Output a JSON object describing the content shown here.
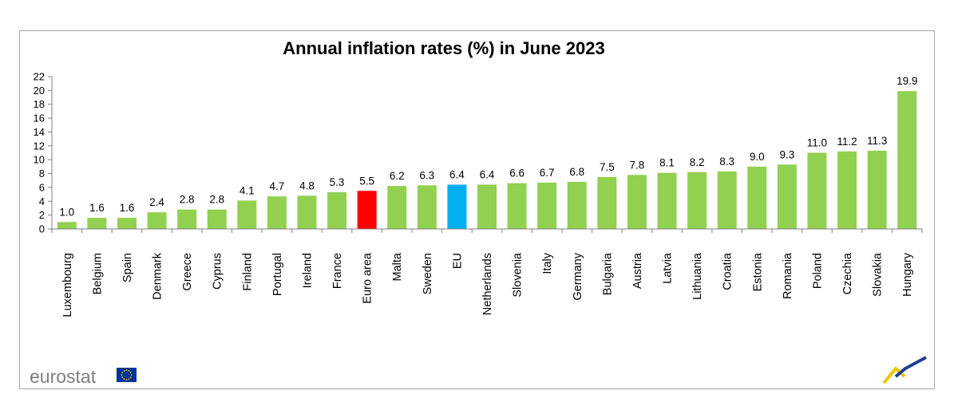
{
  "chart_data": {
    "type": "bar",
    "title": "Annual inflation rates (%) in June 2023",
    "xlabel": "",
    "ylabel": "",
    "ylim": [
      0,
      22
    ],
    "yticks": [
      0,
      2,
      4,
      6,
      8,
      10,
      12,
      14,
      16,
      18,
      20,
      22
    ],
    "grid": false,
    "legend": "none",
    "categories": [
      "Luxembourg",
      "Belgium",
      "Spain",
      "Denmark",
      "Greece",
      "Cyprus",
      "Finland",
      "Portugal",
      "Ireland",
      "France",
      "Euro area",
      "Malta",
      "Sweden",
      "EU",
      "Netherlands",
      "Slovenia",
      "Italy",
      "Germany",
      "Bulgaria",
      "Austria",
      "Latvia",
      "Lithuania",
      "Croatia",
      "Estonia",
      "Romania",
      "Poland",
      "Czechia",
      "Slovakia",
      "Hungary"
    ],
    "values": [
      1.0,
      1.6,
      1.6,
      2.4,
      2.8,
      2.8,
      4.1,
      4.7,
      4.8,
      5.3,
      5.5,
      6.2,
      6.3,
      6.4,
      6.4,
      6.6,
      6.7,
      6.8,
      7.5,
      7.8,
      8.1,
      8.2,
      8.3,
      9.0,
      9.3,
      11.0,
      11.2,
      11.3,
      19.9
    ],
    "value_labels": [
      "1.0",
      "1.6",
      "1.6",
      "2.4",
      "2.8",
      "2.8",
      "4.1",
      "4.7",
      "4.8",
      "5.3",
      "5.5",
      "6.2",
      "6.3",
      "6.4",
      "6.4",
      "6.6",
      "6.7",
      "6.8",
      "7.5",
      "7.8",
      "8.1",
      "8.2",
      "8.3",
      "9.0",
      "9.3",
      "11.0",
      "11.2",
      "11.3",
      "19.9"
    ],
    "colors": {
      "default": "#92d050",
      "highlight": {
        "Euro area": "#ff0000",
        "EU": "#00b0f0"
      }
    }
  },
  "branding": {
    "logo_text": "eurostat",
    "logo_icon": "eu-flag-icon",
    "corner_icon": "eurostat-chevron-icon"
  }
}
